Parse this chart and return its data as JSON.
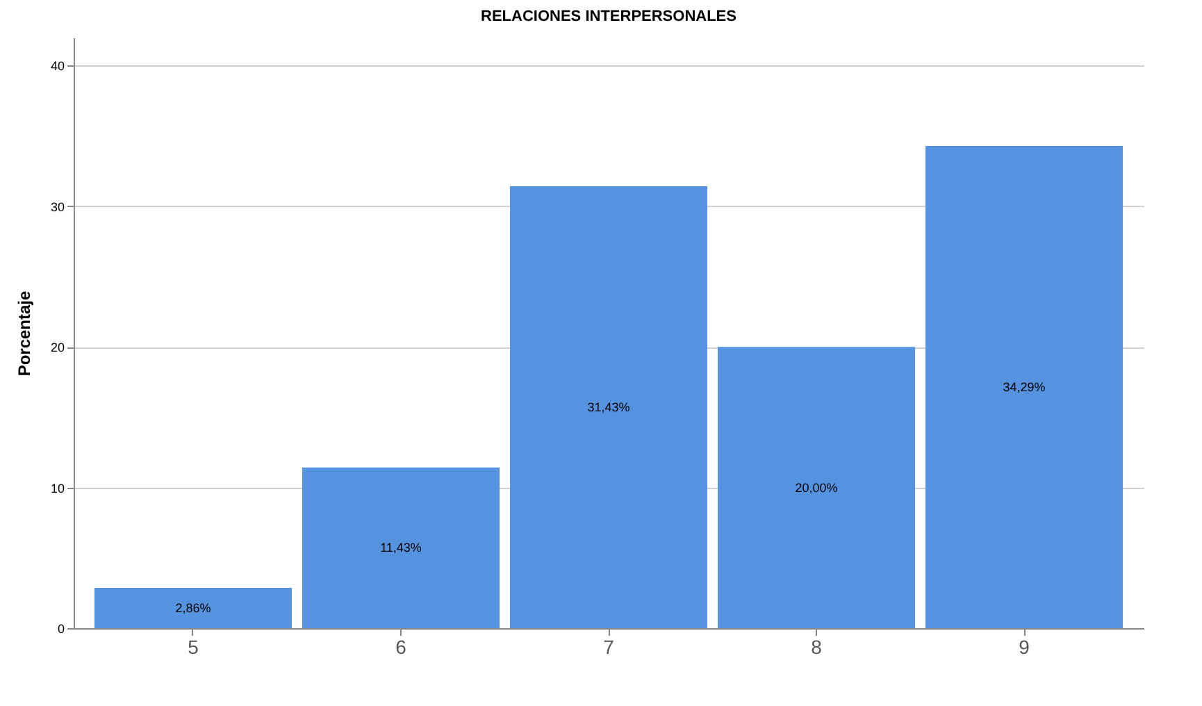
{
  "chart_data": {
    "type": "bar",
    "title": "RELACIONES INTERPERSONALES",
    "ylabel": "Porcentaje",
    "categories": [
      "5",
      "6",
      "7",
      "8",
      "9"
    ],
    "values": [
      2.86,
      11.43,
      31.43,
      20.0,
      34.29
    ],
    "value_labels": [
      "2,86%",
      "11,43%",
      "31,43%",
      "20,00%",
      "34,29%"
    ],
    "color": "#5593e0",
    "ylim": [
      0,
      42
    ],
    "yticks": [
      0,
      10,
      20,
      30,
      40
    ],
    "grid": "y"
  }
}
